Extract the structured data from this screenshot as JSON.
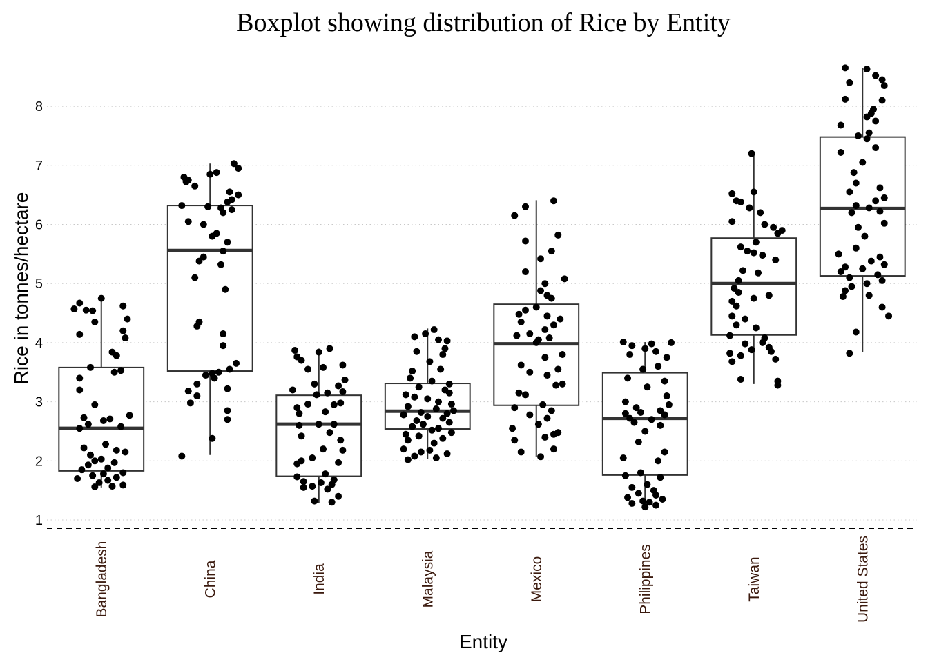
{
  "chart_data": {
    "type": "boxplot",
    "title": "Boxplot showing distribution of Rice by Entity",
    "xlabel": "Entity",
    "ylabel": "Rice in tonnes/hectare",
    "ylim": [
      0.85,
      8.8
    ],
    "yticks": [
      1,
      2,
      3,
      4,
      5,
      6,
      7,
      8
    ],
    "grid": "horizontal-dotted",
    "reference_line": {
      "y": 0.86,
      "style": "dashed"
    },
    "colors": {
      "box": "#333333",
      "median": "#333333",
      "points": "#000000",
      "grid": "#c8c8c8",
      "xtick": "#3b1a0e"
    },
    "categories": [
      "Bangladesh",
      "China",
      "India",
      "Malaysia",
      "Mexico",
      "Philippines",
      "Taiwan",
      "United States"
    ],
    "boxes": [
      {
        "entity": "Bangladesh",
        "min": 1.55,
        "q1": 1.83,
        "median": 2.55,
        "q3": 3.58,
        "max": 4.76
      },
      {
        "entity": "China",
        "min": 2.1,
        "q1": 3.52,
        "median": 5.56,
        "q3": 6.32,
        "max": 7.03
      },
      {
        "entity": "India",
        "min": 1.28,
        "q1": 1.74,
        "median": 2.62,
        "q3": 3.11,
        "max": 3.9
      },
      {
        "entity": "Malaysia",
        "min": 2.03,
        "q1": 2.54,
        "median": 2.84,
        "q3": 3.31,
        "max": 4.24
      },
      {
        "entity": "Mexico",
        "min": 2.07,
        "q1": 2.94,
        "median": 3.98,
        "q3": 4.65,
        "max": 6.41
      },
      {
        "entity": "Philippines",
        "min": 1.21,
        "q1": 1.76,
        "median": 2.72,
        "q3": 3.49,
        "max": 4.01
      },
      {
        "entity": "Taiwan",
        "min": 3.3,
        "q1": 4.13,
        "median": 5.0,
        "q3": 5.77,
        "max": 7.21
      },
      {
        "entity": "United States",
        "min": 3.84,
        "q1": 5.13,
        "median": 6.27,
        "q3": 7.48,
        "max": 8.65
      }
    ],
    "points": [
      {
        "entity": "Bangladesh",
        "values": [
          4.75,
          4.67,
          4.57,
          4.55,
          4.62,
          4.54,
          4.4,
          4.35,
          4.2,
          4.14,
          4.08,
          3.84,
          3.78,
          3.58,
          3.53,
          3.5,
          3.4,
          3.2,
          2.95,
          2.77,
          2.73,
          2.71,
          2.68,
          2.62,
          2.58,
          2.55,
          2.28,
          2.22,
          2.18,
          2.15,
          2.1,
          2.03,
          2.0,
          1.97,
          1.93,
          1.88,
          1.85,
          1.8,
          1.78,
          1.75,
          1.72,
          1.7,
          1.67,
          1.63,
          1.59,
          1.57,
          1.56
        ],
        "jitter": [
          0.0,
          -0.2,
          -0.25,
          -0.14,
          0.2,
          -0.08,
          0.24,
          -0.06,
          0.2,
          -0.2,
          0.22,
          0.1,
          0.14,
          -0.1,
          0.18,
          0.12,
          -0.2,
          -0.2,
          -0.06,
          0.26,
          -0.16,
          0.08,
          0.02,
          -0.12,
          0.18,
          -0.2,
          0.04,
          -0.16,
          0.14,
          0.22,
          -0.1,
          0.0,
          -0.06,
          0.12,
          -0.12,
          0.06,
          -0.18,
          0.2,
          0.02,
          -0.08,
          0.14,
          -0.22,
          0.06,
          -0.02,
          0.2,
          0.1,
          -0.06
        ]
      },
      {
        "entity": "China",
        "values": [
          7.03,
          6.95,
          6.88,
          6.85,
          6.8,
          6.75,
          6.72,
          6.65,
          6.55,
          6.5,
          6.42,
          6.38,
          6.32,
          6.3,
          6.28,
          6.25,
          6.2,
          6.05,
          6.0,
          5.85,
          5.8,
          5.7,
          5.55,
          5.45,
          5.38,
          5.32,
          5.1,
          4.9,
          4.35,
          4.28,
          4.15,
          3.95,
          3.65,
          3.55,
          3.5,
          3.48,
          3.45,
          3.4,
          3.3,
          3.22,
          3.18,
          3.1,
          2.98,
          2.85,
          2.7,
          2.38,
          2.08
        ],
        "jitter": [
          0.22,
          0.26,
          0.06,
          0.0,
          -0.24,
          -0.2,
          -0.22,
          -0.14,
          0.18,
          0.26,
          0.2,
          0.16,
          -0.26,
          -0.02,
          0.1,
          0.2,
          0.12,
          -0.2,
          -0.06,
          0.06,
          0.02,
          0.16,
          0.12,
          -0.06,
          -0.1,
          0.1,
          -0.14,
          0.14,
          -0.1,
          -0.12,
          0.12,
          0.12,
          0.24,
          0.18,
          0.08,
          0.02,
          -0.04,
          0.04,
          -0.12,
          0.16,
          -0.2,
          -0.12,
          -0.18,
          0.16,
          0.16,
          0.02,
          -0.26
        ]
      },
      {
        "entity": "India",
        "values": [
          3.9,
          3.87,
          3.84,
          3.76,
          3.7,
          3.62,
          3.58,
          3.55,
          3.37,
          3.3,
          3.27,
          3.2,
          3.17,
          3.15,
          3.12,
          2.98,
          2.96,
          2.95,
          2.9,
          2.83,
          2.8,
          2.62,
          2.62,
          2.6,
          2.48,
          2.42,
          2.35,
          2.2,
          2.18,
          2.05,
          2.0,
          1.97,
          1.95,
          1.78,
          1.73,
          1.68,
          1.65,
          1.63,
          1.6,
          1.57,
          1.55,
          1.52,
          1.4,
          1.32,
          1.3
        ],
        "jitter": [
          0.1,
          -0.22,
          0.0,
          -0.2,
          -0.16,
          0.22,
          0.04,
          -0.1,
          0.24,
          -0.04,
          0.18,
          -0.24,
          0.22,
          0.08,
          -0.02,
          0.2,
          -0.1,
          0.14,
          -0.2,
          0.06,
          -0.18,
          0.14,
          0.0,
          -0.18,
          0.1,
          -0.16,
          0.2,
          0.04,
          0.22,
          -0.06,
          -0.16,
          0.18,
          -0.2,
          0.06,
          -0.2,
          0.14,
          -0.14,
          0.02,
          0.12,
          -0.06,
          -0.14,
          0.08,
          0.18,
          -0.04,
          0.12
        ]
      },
      {
        "entity": "Malaysia",
        "values": [
          4.22,
          4.15,
          4.1,
          4.05,
          4.03,
          3.9,
          3.85,
          3.8,
          3.68,
          3.55,
          3.52,
          3.4,
          3.35,
          3.3,
          3.25,
          3.2,
          3.15,
          3.12,
          3.08,
          3.05,
          3.0,
          2.96,
          2.92,
          2.88,
          2.85,
          2.82,
          2.8,
          2.78,
          2.75,
          2.72,
          2.68,
          2.65,
          2.62,
          2.58,
          2.55,
          2.52,
          2.48,
          2.45,
          2.42,
          2.38,
          2.35,
          2.3,
          2.2,
          2.18,
          2.15,
          2.12,
          2.08,
          2.05,
          2.02
        ],
        "jitter": [
          0.06,
          -0.02,
          -0.12,
          0.1,
          0.18,
          0.16,
          -0.1,
          0.14,
          0.02,
          0.12,
          -0.14,
          -0.16,
          0.04,
          0.2,
          -0.08,
          0.16,
          0.2,
          -0.2,
          -0.12,
          0.0,
          0.1,
          0.22,
          -0.18,
          0.08,
          0.24,
          -0.06,
          0.18,
          -0.22,
          0.0,
          0.14,
          -0.1,
          0.2,
          -0.04,
          -0.14,
          0.1,
          0.04,
          0.22,
          -0.2,
          -0.08,
          0.14,
          -0.18,
          0.06,
          -0.22,
          0.02,
          -0.06,
          0.18,
          -0.12,
          0.08,
          -0.18
        ]
      },
      {
        "entity": "Mexico",
        "values": [
          6.4,
          6.3,
          6.15,
          5.82,
          5.72,
          5.55,
          5.42,
          5.2,
          5.08,
          5.0,
          4.88,
          4.8,
          4.75,
          4.6,
          4.55,
          4.48,
          4.45,
          4.4,
          4.35,
          4.3,
          4.22,
          4.15,
          4.12,
          4.08,
          4.05,
          4.0,
          3.8,
          3.75,
          3.62,
          3.55,
          3.5,
          3.45,
          3.3,
          3.28,
          3.15,
          3.12,
          2.95,
          2.9,
          2.85,
          2.78,
          2.72,
          2.62,
          2.55,
          2.48,
          2.45,
          2.4,
          2.35,
          2.2,
          2.15,
          2.07
        ],
        "jitter": [
          0.16,
          -0.1,
          -0.2,
          0.2,
          -0.1,
          0.14,
          0.04,
          -0.1,
          0.26,
          0.08,
          0.04,
          0.1,
          0.14,
          0.0,
          -0.1,
          -0.16,
          0.1,
          0.22,
          -0.14,
          0.16,
          0.08,
          -0.06,
          -0.18,
          0.12,
          0.02,
          0.0,
          0.24,
          0.08,
          -0.14,
          0.2,
          -0.06,
          0.1,
          0.24,
          0.18,
          -0.16,
          -0.1,
          0.06,
          -0.2,
          0.14,
          -0.06,
          0.1,
          0.02,
          -0.22,
          0.2,
          0.16,
          0.08,
          -0.2,
          0.16,
          -0.14,
          0.04
        ]
      },
      {
        "entity": "Philippines",
        "values": [
          4.01,
          4.0,
          3.98,
          3.95,
          3.9,
          3.85,
          3.8,
          3.75,
          3.6,
          3.55,
          3.4,
          3.35,
          3.25,
          3.1,
          3.0,
          2.95,
          2.9,
          2.85,
          2.82,
          2.8,
          2.78,
          2.72,
          2.7,
          2.65,
          2.6,
          2.5,
          2.32,
          2.15,
          2.05,
          2.0,
          1.8,
          1.75,
          1.72,
          1.6,
          1.55,
          1.5,
          1.45,
          1.42,
          1.38,
          1.35,
          1.32,
          1.3,
          1.28,
          1.25,
          1.22
        ],
        "jitter": [
          -0.2,
          0.24,
          0.06,
          -0.12,
          0.0,
          0.1,
          -0.14,
          0.2,
          0.12,
          -0.02,
          -0.16,
          0.18,
          0.02,
          0.2,
          -0.18,
          0.22,
          -0.08,
          0.14,
          -0.04,
          -0.18,
          0.18,
          -0.14,
          0.06,
          -0.1,
          0.14,
          0.0,
          -0.06,
          0.18,
          -0.2,
          0.12,
          -0.04,
          -0.18,
          0.14,
          0.02,
          -0.12,
          0.08,
          -0.06,
          0.1,
          -0.16,
          0.16,
          -0.02,
          0.04,
          -0.12,
          0.1,
          0.0
        ]
      },
      {
        "entity": "Taiwan",
        "values": [
          7.2,
          6.55,
          6.52,
          6.4,
          6.38,
          6.28,
          6.2,
          6.05,
          6.0,
          5.95,
          5.9,
          5.85,
          5.7,
          5.62,
          5.55,
          5.52,
          5.48,
          5.4,
          5.22,
          5.18,
          5.05,
          4.92,
          4.85,
          4.8,
          4.75,
          4.7,
          4.62,
          4.45,
          4.4,
          4.3,
          4.25,
          4.12,
          4.08,
          4.0,
          3.98,
          3.92,
          3.88,
          3.85,
          3.82,
          3.78,
          3.72,
          3.68,
          3.38,
          3.35,
          3.28
        ],
        "jitter": [
          -0.02,
          0.0,
          -0.2,
          -0.16,
          -0.12,
          -0.04,
          0.06,
          -0.2,
          0.1,
          0.18,
          0.26,
          0.22,
          0.02,
          -0.12,
          -0.06,
          0.0,
          0.08,
          0.2,
          -0.1,
          0.04,
          -0.14,
          -0.18,
          -0.14,
          0.14,
          0.0,
          -0.2,
          -0.16,
          -0.2,
          -0.08,
          -0.16,
          0.02,
          -0.22,
          0.1,
          0.08,
          -0.08,
          0.14,
          -0.02,
          0.16,
          -0.22,
          -0.12,
          0.2,
          -0.2,
          -0.12,
          0.22,
          0.22
        ]
      },
      {
        "entity": "United States",
        "values": [
          8.65,
          8.63,
          8.52,
          8.45,
          8.4,
          8.35,
          8.12,
          8.1,
          7.95,
          7.88,
          7.82,
          7.75,
          7.68,
          7.55,
          7.5,
          7.45,
          7.3,
          7.22,
          7.05,
          6.88,
          6.7,
          6.62,
          6.55,
          6.45,
          6.4,
          6.32,
          6.28,
          6.22,
          6.2,
          6.02,
          5.95,
          5.8,
          5.6,
          5.5,
          5.45,
          5.38,
          5.32,
          5.28,
          5.25,
          5.2,
          5.15,
          5.1,
          5.05,
          5.0,
          4.95,
          4.88,
          4.8,
          4.78,
          4.6,
          4.45,
          4.18,
          3.82
        ],
        "jitter": [
          -0.16,
          0.04,
          0.12,
          0.18,
          -0.12,
          0.2,
          -0.16,
          0.18,
          0.1,
          0.08,
          0.04,
          0.12,
          -0.2,
          0.06,
          -0.04,
          0.04,
          0.12,
          -0.2,
          0.0,
          -0.08,
          -0.06,
          0.16,
          -0.12,
          0.2,
          0.12,
          -0.06,
          0.06,
          0.16,
          -0.1,
          0.2,
          -0.04,
          0.02,
          -0.06,
          -0.22,
          0.16,
          0.08,
          0.2,
          -0.16,
          0.0,
          -0.2,
          0.14,
          -0.12,
          0.18,
          0.04,
          -0.1,
          -0.16,
          0.06,
          -0.18,
          0.18,
          0.24,
          -0.06,
          -0.12
        ]
      }
    ]
  }
}
